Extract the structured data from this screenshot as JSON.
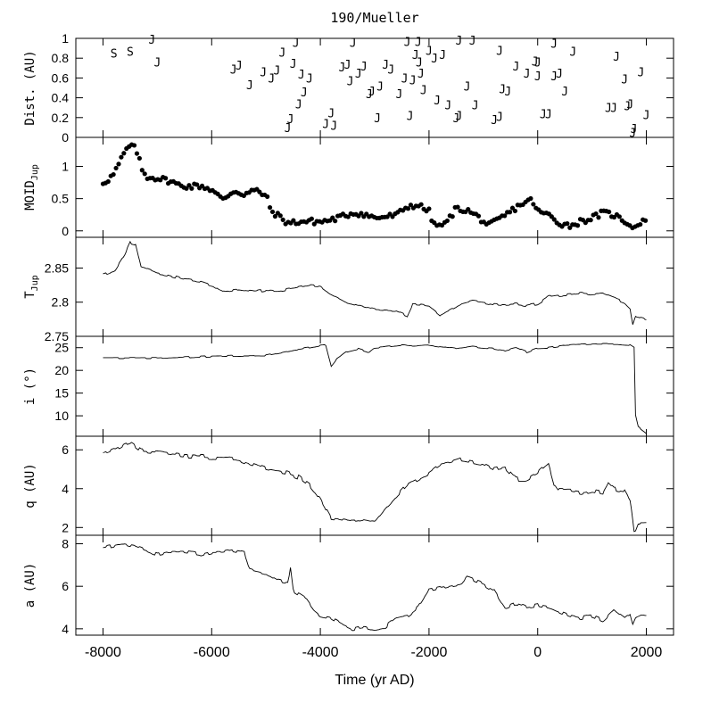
{
  "title": "190/Mueller",
  "x_axis": {
    "label": "Time (yr AD)",
    "range": [
      -8500,
      2500
    ],
    "ticks": [
      -8000,
      -6000,
      -4000,
      -2000,
      0,
      2000
    ],
    "tick_labels": [
      "-8000",
      "-6000",
      "-4000",
      "-2000",
      "0",
      "2000"
    ]
  },
  "panels": [
    {
      "key": "dist",
      "label": "Dist. (AU)",
      "ylim": [
        0,
        1
      ],
      "ticks": [
        0,
        0.2,
        0.4,
        0.6,
        0.8,
        1
      ],
      "tick_labels": [
        "0",
        "0.2",
        "0.4",
        "0.6",
        "0.8",
        "1"
      ]
    },
    {
      "key": "moid",
      "label": "MOID",
      "label_sub": "Jup",
      "ylim": [
        -0.1,
        1.45
      ],
      "ticks": [
        0,
        0.5,
        1
      ],
      "tick_labels": [
        "0",
        "0.5",
        "1"
      ]
    },
    {
      "key": "tjup",
      "label": "T",
      "label_sub": "Jup",
      "ylim": [
        2.75,
        2.895
      ],
      "ticks": [
        2.75,
        2.8,
        2.85
      ],
      "tick_labels": [
        "2.75",
        "2.8",
        "2.85"
      ]
    },
    {
      "key": "inc",
      "label": "i (°)",
      "ylim": [
        5.5,
        27.5
      ],
      "ticks": [
        10,
        15,
        20,
        25
      ],
      "tick_labels": [
        "10",
        "15",
        "20",
        "25"
      ]
    },
    {
      "key": "q",
      "label": "q (AU)",
      "ylim": [
        1.6,
        6.7
      ],
      "ticks": [
        2,
        4,
        6
      ],
      "tick_labels": [
        "2",
        "4",
        "6"
      ]
    },
    {
      "key": "a",
      "label": "a (AU)",
      "ylim": [
        3.7,
        8.4
      ],
      "ticks": [
        4,
        6,
        8
      ],
      "tick_labels": [
        "4",
        "6",
        "8"
      ]
    }
  ],
  "chart_data": {
    "type": "line",
    "encounters": [
      {
        "t": -7800,
        "d": 0.85,
        "body": "S"
      },
      {
        "t": -7500,
        "d": 0.87,
        "body": "S"
      },
      {
        "t": -7100,
        "d": 0.99,
        "body": "J"
      },
      {
        "t": -7000,
        "d": 0.76,
        "body": "J"
      },
      {
        "t": -5600,
        "d": 0.69,
        "body": "J"
      },
      {
        "t": -5500,
        "d": 0.73,
        "body": "J"
      },
      {
        "t": -5300,
        "d": 0.53,
        "body": "J"
      },
      {
        "t": -5050,
        "d": 0.66,
        "body": "J"
      },
      {
        "t": -4900,
        "d": 0.6,
        "body": "J"
      },
      {
        "t": -4800,
        "d": 0.68,
        "body": "J"
      },
      {
        "t": -4700,
        "d": 0.86,
        "body": "J"
      },
      {
        "t": -4600,
        "d": 0.1,
        "body": "J"
      },
      {
        "t": -4550,
        "d": 0.19,
        "body": "J"
      },
      {
        "t": -4500,
        "d": 0.75,
        "body": "J"
      },
      {
        "t": -4450,
        "d": 0.96,
        "body": "J"
      },
      {
        "t": -4400,
        "d": 0.34,
        "body": "J"
      },
      {
        "t": -4350,
        "d": 0.64,
        "body": "J"
      },
      {
        "t": -4300,
        "d": 0.46,
        "body": "J"
      },
      {
        "t": -4200,
        "d": 0.6,
        "body": "J"
      },
      {
        "t": -3900,
        "d": 0.14,
        "body": "J"
      },
      {
        "t": -3800,
        "d": 0.25,
        "body": "J"
      },
      {
        "t": -3750,
        "d": 0.12,
        "body": "J"
      },
      {
        "t": -3600,
        "d": 0.71,
        "body": "J"
      },
      {
        "t": -3500,
        "d": 0.74,
        "body": "J"
      },
      {
        "t": -3450,
        "d": 0.57,
        "body": "J"
      },
      {
        "t": -3400,
        "d": 0.96,
        "body": "J"
      },
      {
        "t": -3300,
        "d": 0.65,
        "body": "J"
      },
      {
        "t": -3200,
        "d": 0.72,
        "body": "J"
      },
      {
        "t": -3100,
        "d": 0.44,
        "body": "J"
      },
      {
        "t": -3050,
        "d": 0.47,
        "body": "J"
      },
      {
        "t": -2950,
        "d": 0.2,
        "body": "J"
      },
      {
        "t": -2900,
        "d": 0.52,
        "body": "J"
      },
      {
        "t": -2800,
        "d": 0.74,
        "body": "J"
      },
      {
        "t": -2700,
        "d": 0.69,
        "body": "J"
      },
      {
        "t": -2550,
        "d": 0.44,
        "body": "J"
      },
      {
        "t": -2450,
        "d": 0.6,
        "body": "J"
      },
      {
        "t": -2400,
        "d": 0.97,
        "body": "J"
      },
      {
        "t": -2350,
        "d": 0.22,
        "body": "J"
      },
      {
        "t": -2300,
        "d": 0.58,
        "body": "J"
      },
      {
        "t": -2250,
        "d": 0.84,
        "body": "J"
      },
      {
        "t": -2200,
        "d": 0.97,
        "body": "J"
      },
      {
        "t": -2180,
        "d": 0.76,
        "body": "J"
      },
      {
        "t": -2150,
        "d": 0.65,
        "body": "J"
      },
      {
        "t": -2100,
        "d": 0.48,
        "body": "J"
      },
      {
        "t": -2000,
        "d": 0.88,
        "body": "J"
      },
      {
        "t": -1900,
        "d": 0.8,
        "body": "J"
      },
      {
        "t": -1850,
        "d": 0.38,
        "body": "J"
      },
      {
        "t": -1750,
        "d": 0.84,
        "body": "J"
      },
      {
        "t": -1650,
        "d": 0.33,
        "body": "J"
      },
      {
        "t": -1500,
        "d": 0.2,
        "body": "J"
      },
      {
        "t": -1450,
        "d": 0.22,
        "body": "J"
      },
      {
        "t": -1450,
        "d": 0.98,
        "body": "J"
      },
      {
        "t": -1300,
        "d": 0.52,
        "body": "J"
      },
      {
        "t": -1200,
        "d": 0.98,
        "body": "J"
      },
      {
        "t": -1150,
        "d": 0.33,
        "body": "J"
      },
      {
        "t": -800,
        "d": 0.18,
        "body": "J"
      },
      {
        "t": -700,
        "d": 0.21,
        "body": "J"
      },
      {
        "t": -700,
        "d": 0.88,
        "body": "J"
      },
      {
        "t": -650,
        "d": 0.49,
        "body": "J"
      },
      {
        "t": -550,
        "d": 0.47,
        "body": "J"
      },
      {
        "t": -400,
        "d": 0.72,
        "body": "J"
      },
      {
        "t": -200,
        "d": 0.65,
        "body": "J"
      },
      {
        "t": -50,
        "d": 0.77,
        "body": "J"
      },
      {
        "t": 0,
        "d": 0.76,
        "body": "J"
      },
      {
        "t": 0,
        "d": 0.62,
        "body": "J"
      },
      {
        "t": 100,
        "d": 0.24,
        "body": "J"
      },
      {
        "t": 200,
        "d": 0.24,
        "body": "J"
      },
      {
        "t": 300,
        "d": 0.62,
        "body": "J"
      },
      {
        "t": 300,
        "d": 0.95,
        "body": "J"
      },
      {
        "t": 400,
        "d": 0.65,
        "body": "J"
      },
      {
        "t": 500,
        "d": 0.47,
        "body": "J"
      },
      {
        "t": 650,
        "d": 0.87,
        "body": "J"
      },
      {
        "t": 1300,
        "d": 0.3,
        "body": "J"
      },
      {
        "t": 1400,
        "d": 0.3,
        "body": "J"
      },
      {
        "t": 1450,
        "d": 0.82,
        "body": "J"
      },
      {
        "t": 1600,
        "d": 0.59,
        "body": "J"
      },
      {
        "t": 1650,
        "d": 0.32,
        "body": "J"
      },
      {
        "t": 1700,
        "d": 0.34,
        "body": "J"
      },
      {
        "t": 1750,
        "d": 0.05,
        "body": "J"
      },
      {
        "t": 1770,
        "d": 0.09,
        "body": "J"
      },
      {
        "t": 1900,
        "d": 0.66,
        "body": "J"
      },
      {
        "t": 2000,
        "d": 0.23,
        "body": "J"
      }
    ],
    "moid_keypoints": [
      [
        -8000,
        0.75
      ],
      [
        -7900,
        0.8
      ],
      [
        -7800,
        0.88
      ],
      [
        -7700,
        1.05
      ],
      [
        -7600,
        1.22
      ],
      [
        -7500,
        1.33
      ],
      [
        -7400,
        1.27
      ],
      [
        -7350,
        1.18
      ],
      [
        -7300,
        0.97
      ],
      [
        -7200,
        0.84
      ],
      [
        -7000,
        0.82
      ],
      [
        -6800,
        0.78
      ],
      [
        -6600,
        0.71
      ],
      [
        -6400,
        0.69
      ],
      [
        -6200,
        0.7
      ],
      [
        -6000,
        0.64
      ],
      [
        -5800,
        0.48
      ],
      [
        -5600,
        0.62
      ],
      [
        -5400,
        0.57
      ],
      [
        -5200,
        0.63
      ],
      [
        -5000,
        0.55
      ],
      [
        -4900,
        0.3
      ],
      [
        -4800,
        0.25
      ],
      [
        -4600,
        0.12
      ],
      [
        -4400,
        0.14
      ],
      [
        -4200,
        0.15
      ],
      [
        -4000,
        0.14
      ],
      [
        -3800,
        0.17
      ],
      [
        -3600,
        0.22
      ],
      [
        -3400,
        0.28
      ],
      [
        -3200,
        0.26
      ],
      [
        -3000,
        0.2
      ],
      [
        -2800,
        0.22
      ],
      [
        -2600,
        0.24
      ],
      [
        -2400,
        0.38
      ],
      [
        -2200,
        0.4
      ],
      [
        -2100,
        0.35
      ],
      [
        -2000,
        0.3
      ],
      [
        -1900,
        0.08
      ],
      [
        -1700,
        0.1
      ],
      [
        -1500,
        0.35
      ],
      [
        -1300,
        0.32
      ],
      [
        -1100,
        0.22
      ],
      [
        -900,
        0.08
      ],
      [
        -700,
        0.18
      ],
      [
        -500,
        0.3
      ],
      [
        -300,
        0.42
      ],
      [
        -100,
        0.48
      ],
      [
        0,
        0.3
      ],
      [
        200,
        0.25
      ],
      [
        400,
        0.12
      ],
      [
        600,
        0.08
      ],
      [
        800,
        0.15
      ],
      [
        1000,
        0.2
      ],
      [
        1200,
        0.28
      ],
      [
        1400,
        0.25
      ],
      [
        1600,
        0.15
      ],
      [
        1800,
        0.05
      ],
      [
        1900,
        0.15
      ],
      [
        2000,
        0.18
      ]
    ],
    "tjup_keypoints": [
      [
        -8000,
        2.84
      ],
      [
        -7800,
        2.845
      ],
      [
        -7600,
        2.87
      ],
      [
        -7500,
        2.887
      ],
      [
        -7400,
        2.885
      ],
      [
        -7300,
        2.852
      ],
      [
        -7000,
        2.842
      ],
      [
        -6800,
        2.84
      ],
      [
        -6500,
        2.833
      ],
      [
        -6200,
        2.83
      ],
      [
        -6000,
        2.825
      ],
      [
        -5800,
        2.815
      ],
      [
        -5500,
        2.818
      ],
      [
        -5200,
        2.815
      ],
      [
        -5000,
        2.818
      ],
      [
        -4800,
        2.817
      ],
      [
        -4500,
        2.82
      ],
      [
        -4200,
        2.825
      ],
      [
        -4000,
        2.824
      ],
      [
        -3800,
        2.812
      ],
      [
        -3500,
        2.8
      ],
      [
        -3200,
        2.793
      ],
      [
        -3000,
        2.789
      ],
      [
        -2800,
        2.788
      ],
      [
        -2600,
        2.787
      ],
      [
        -2400,
        2.78
      ],
      [
        -2300,
        2.797
      ],
      [
        -2200,
        2.797
      ],
      [
        -2000,
        2.795
      ],
      [
        -1800,
        2.782
      ],
      [
        -1600,
        2.79
      ],
      [
        -1400,
        2.798
      ],
      [
        -1200,
        2.802
      ],
      [
        -1000,
        2.8
      ],
      [
        -800,
        2.797
      ],
      [
        -600,
        2.796
      ],
      [
        -400,
        2.797
      ],
      [
        -200,
        2.795
      ],
      [
        0,
        2.798
      ],
      [
        200,
        2.808
      ],
      [
        400,
        2.81
      ],
      [
        600,
        2.811
      ],
      [
        800,
        2.813
      ],
      [
        1000,
        2.811
      ],
      [
        1200,
        2.812
      ],
      [
        1400,
        2.806
      ],
      [
        1600,
        2.8
      ],
      [
        1700,
        2.792
      ],
      [
        1750,
        2.768
      ],
      [
        1800,
        2.78
      ],
      [
        2000,
        2.776
      ]
    ],
    "inc_keypoints": [
      [
        -8000,
        22.7
      ],
      [
        -7000,
        22.7
      ],
      [
        -6000,
        23.1
      ],
      [
        -5000,
        23.3
      ],
      [
        -4500,
        24.5
      ],
      [
        -4200,
        25.0
      ],
      [
        -4000,
        25.5
      ],
      [
        -3900,
        25.6
      ],
      [
        -3800,
        21.0
      ],
      [
        -3700,
        22.5
      ],
      [
        -3500,
        24.2
      ],
      [
        -3300,
        24.8
      ],
      [
        -3100,
        24.0
      ],
      [
        -3000,
        25.0
      ],
      [
        -2800,
        25.2
      ],
      [
        -2500,
        25.6
      ],
      [
        -2300,
        25.4
      ],
      [
        -2000,
        25.6
      ],
      [
        -1500,
        24.8
      ],
      [
        -1200,
        25.3
      ],
      [
        -1000,
        25.0
      ],
      [
        -800,
        24.8
      ],
      [
        -600,
        24.4
      ],
      [
        -400,
        25.0
      ],
      [
        -200,
        24.0
      ],
      [
        0,
        24.9
      ],
      [
        200,
        25.0
      ],
      [
        500,
        25.5
      ],
      [
        800,
        25.7
      ],
      [
        1100,
        25.8
      ],
      [
        1500,
        25.8
      ],
      [
        1700,
        25.6
      ],
      [
        1780,
        25.0
      ],
      [
        1800,
        10.0
      ],
      [
        1850,
        7.5
      ],
      [
        2000,
        6.2
      ]
    ],
    "q_keypoints": [
      [
        -8000,
        5.8
      ],
      [
        -7800,
        6.0
      ],
      [
        -7600,
        6.3
      ],
      [
        -7500,
        6.4
      ],
      [
        -7300,
        6.0
      ],
      [
        -7000,
        5.9
      ],
      [
        -6500,
        5.7
      ],
      [
        -6000,
        5.6
      ],
      [
        -5500,
        5.5
      ],
      [
        -5000,
        5.0
      ],
      [
        -4600,
        4.8
      ],
      [
        -4400,
        4.6
      ],
      [
        -4200,
        4.2
      ],
      [
        -4000,
        3.5
      ],
      [
        -3900,
        3.0
      ],
      [
        -3800,
        2.5
      ],
      [
        -3600,
        2.4
      ],
      [
        -3400,
        2.3
      ],
      [
        -3200,
        2.4
      ],
      [
        -3000,
        2.3
      ],
      [
        -2800,
        3.0
      ],
      [
        -2600,
        3.6
      ],
      [
        -2400,
        4.2
      ],
      [
        -2200,
        4.5
      ],
      [
        -2000,
        4.8
      ],
      [
        -1800,
        5.2
      ],
      [
        -1600,
        5.3
      ],
      [
        -1400,
        5.5
      ],
      [
        -1200,
        5.4
      ],
      [
        -1000,
        5.3
      ],
      [
        -800,
        5.0
      ],
      [
        -600,
        5.1
      ],
      [
        -400,
        4.5
      ],
      [
        -200,
        4.5
      ],
      [
        0,
        4.8
      ],
      [
        200,
        5.3
      ],
      [
        300,
        4.3
      ],
      [
        400,
        3.9
      ],
      [
        600,
        3.9
      ],
      [
        800,
        3.8
      ],
      [
        1000,
        3.9
      ],
      [
        1200,
        3.8
      ],
      [
        1300,
        4.3
      ],
      [
        1400,
        4.0
      ],
      [
        1600,
        3.9
      ],
      [
        1700,
        3.4
      ],
      [
        1750,
        2.5
      ],
      [
        1780,
        1.8
      ],
      [
        1850,
        2.3
      ],
      [
        2000,
        2.3
      ]
    ],
    "a_keypoints": [
      [
        -8000,
        7.8
      ],
      [
        -7800,
        7.9
      ],
      [
        -7600,
        8.0
      ],
      [
        -7400,
        7.9
      ],
      [
        -7200,
        7.7
      ],
      [
        -7000,
        7.5
      ],
      [
        -6800,
        7.6
      ],
      [
        -6500,
        7.6
      ],
      [
        -6200,
        7.5
      ],
      [
        -6000,
        7.6
      ],
      [
        -5800,
        7.6
      ],
      [
        -5600,
        7.7
      ],
      [
        -5400,
        7.6
      ],
      [
        -5300,
        6.8
      ],
      [
        -5000,
        6.6
      ],
      [
        -4800,
        6.3
      ],
      [
        -4600,
        6.2
      ],
      [
        -4550,
        6.8
      ],
      [
        -4500,
        5.8
      ],
      [
        -4300,
        5.5
      ],
      [
        -4100,
        4.8
      ],
      [
        -4000,
        4.6
      ],
      [
        -3800,
        4.5
      ],
      [
        -3600,
        4.2
      ],
      [
        -3400,
        4.0
      ],
      [
        -3200,
        4.1
      ],
      [
        -3000,
        4.0
      ],
      [
        -2800,
        4.1
      ],
      [
        -2600,
        4.5
      ],
      [
        -2400,
        4.6
      ],
      [
        -2200,
        5.0
      ],
      [
        -2000,
        5.8
      ],
      [
        -1800,
        5.9
      ],
      [
        -1600,
        6.0
      ],
      [
        -1400,
        6.1
      ],
      [
        -1300,
        6.4
      ],
      [
        -1100,
        6.2
      ],
      [
        -1000,
        6.1
      ],
      [
        -800,
        5.8
      ],
      [
        -600,
        5.0
      ],
      [
        -400,
        5.2
      ],
      [
        -200,
        5.0
      ],
      [
        0,
        5.1
      ],
      [
        200,
        5.0
      ],
      [
        400,
        4.8
      ],
      [
        600,
        4.6
      ],
      [
        800,
        4.5
      ],
      [
        1000,
        4.6
      ],
      [
        1200,
        4.4
      ],
      [
        1400,
        4.9
      ],
      [
        1600,
        4.5
      ],
      [
        1700,
        4.7
      ],
      [
        1750,
        4.2
      ],
      [
        1800,
        4.5
      ],
      [
        1900,
        4.6
      ],
      [
        2000,
        4.6
      ]
    ]
  }
}
